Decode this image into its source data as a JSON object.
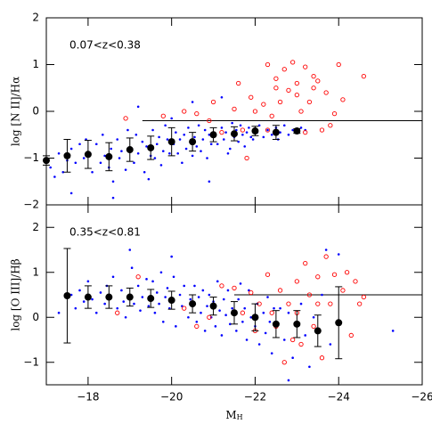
{
  "chart_data": [
    {
      "type": "scatter",
      "annotation": "0.07<z<0.38",
      "ylabel": "log [N II]/Hα",
      "xlim": [
        -17,
        -26
      ],
      "ylim": [
        -2,
        2
      ],
      "xticks": [
        -18,
        -20,
        -22,
        -24,
        -26
      ],
      "yticks": [
        2,
        1,
        0,
        -1,
        -2
      ],
      "hline": {
        "y": -0.2,
        "x": [
          -19.3,
          -26
        ]
      },
      "series": [
        {
          "marker": "dot",
          "color": "#0000ff",
          "x": [
            -17.1,
            -17.3,
            -17.4,
            -17.6,
            -17.7,
            -17.8,
            -17.9,
            -17.2,
            -17.5,
            -17.95,
            -18.05,
            -18.1,
            -18.2,
            -18.3,
            -18.35,
            -18.4,
            -18.5,
            -18.55,
            -18.6,
            -18.7,
            -18.75,
            -18.8,
            -18.9,
            -18.95,
            -19.05,
            -19.1,
            -19.15,
            -19.2,
            -19.3,
            -19.35,
            -19.4,
            -19.5,
            -19.55,
            -19.6,
            -19.65,
            -19.7,
            -19.75,
            -19.8,
            -19.85,
            -19.9,
            -19.95,
            -19.45,
            -20.05,
            -20.1,
            -20.15,
            -20.2,
            -20.25,
            -20.3,
            -20.35,
            -20.4,
            -20.45,
            -20.5,
            -20.55,
            -20.6,
            -20.65,
            -20.7,
            -20.75,
            -20.8,
            -20.85,
            -20.9,
            -20.95,
            -20.0,
            -21.05,
            -21.1,
            -21.2,
            -21.25,
            -21.3,
            -21.4,
            -21.45,
            -21.5,
            -21.55,
            -21.6,
            -21.65,
            -21.7,
            -21.75,
            -21.8,
            -21.85,
            -21.9,
            -21.95,
            -21.35,
            -22.05,
            -22.1,
            -22.2,
            -22.3,
            -22.4,
            -22.5,
            -22.55,
            -22.6,
            -22.7,
            -22.8,
            -22.9,
            -23.0,
            -23.1,
            -23.2,
            -19.2,
            -20.5,
            -21.2,
            -18.6,
            -17.6,
            -20.9
          ],
          "values": [
            -1.2,
            -0.9,
            -1.3,
            -0.8,
            -1.1,
            -0.7,
            -1.0,
            -1.4,
            -1.05,
            -0.6,
            -0.9,
            -1.3,
            -0.7,
            -1.1,
            -0.5,
            -0.95,
            -1.2,
            -0.8,
            -1.5,
            -0.6,
            -1.0,
            -0.85,
            -1.25,
            -0.4,
            -0.8,
            -1.1,
            -0.5,
            -0.9,
            -0.65,
            -1.3,
            -0.75,
            -0.95,
            -0.4,
            -1.0,
            -0.7,
            -0.55,
            -1.15,
            -0.85,
            -0.3,
            -0.6,
            -0.9,
            -1.45,
            -0.7,
            -0.45,
            -0.9,
            -0.6,
            -1.1,
            -0.5,
            -0.8,
            -0.35,
            -0.65,
            -0.95,
            -0.55,
            -0.75,
            -0.3,
            -0.85,
            -0.6,
            -0.4,
            -1.0,
            -0.5,
            -0.7,
            -0.15,
            -0.5,
            -0.7,
            -0.35,
            -0.6,
            -0.45,
            -0.8,
            -0.25,
            -0.55,
            -0.4,
            -0.65,
            -0.3,
            -0.5,
            -0.75,
            -0.45,
            -0.35,
            -0.55,
            -0.6,
            -0.9,
            -0.45,
            -0.3,
            -0.55,
            -0.4,
            -0.5,
            -0.35,
            -0.6,
            -0.45,
            -0.3,
            -0.5,
            -0.4,
            -0.45,
            -0.35,
            -0.4,
            0.1,
            0.2,
            0.3,
            -1.85,
            -1.75,
            -1.5
          ]
        },
        {
          "marker": "open-circle",
          "color": "#ff0000",
          "x": [
            -18.9,
            -19.8,
            -20.3,
            -20.6,
            -21.0,
            -21.2,
            -21.5,
            -21.7,
            -21.8,
            -21.9,
            -22.0,
            -22.2,
            -22.3,
            -22.4,
            -22.5,
            -22.5,
            -22.6,
            -22.7,
            -22.8,
            -22.9,
            -23.0,
            -23.0,
            -23.1,
            -23.2,
            -23.3,
            -23.4,
            -23.5,
            -23.6,
            -23.7,
            -23.8,
            -23.9,
            -24.0,
            -24.1,
            -23.4,
            -22.3,
            -24.6,
            -23.2,
            -21.6,
            -20.9
          ],
          "values": [
            -0.15,
            -0.1,
            0.0,
            -0.05,
            0.2,
            -0.45,
            0.05,
            -0.4,
            -1.0,
            0.3,
            0.0,
            0.15,
            -0.4,
            -0.1,
            0.7,
            0.5,
            0.2,
            0.9,
            0.45,
            1.05,
            0.35,
            0.6,
            0.0,
            0.95,
            0.2,
            0.5,
            0.65,
            -0.4,
            0.4,
            -0.3,
            -0.05,
            1.0,
            0.25,
            0.75,
            1.0,
            0.75,
            -0.45,
            0.6,
            -0.2
          ]
        },
        {
          "marker": "errorbar",
          "color": "#000000",
          "x": [
            -17,
            -17.5,
            -18,
            -18.5,
            -19,
            -19.5,
            -20,
            -20.5,
            -21,
            -21.5,
            -22,
            -22.5,
            -23
          ],
          "values": [
            -1.05,
            -0.95,
            -0.92,
            -0.97,
            -0.82,
            -0.78,
            -0.65,
            -0.65,
            -0.5,
            -0.48,
            -0.42,
            -0.45,
            -0.42
          ],
          "errors": [
            0.1,
            0.35,
            0.3,
            0.3,
            0.25,
            0.25,
            0.3,
            0.2,
            0.15,
            0.15,
            0.1,
            0.15,
            0.05
          ]
        }
      ]
    },
    {
      "type": "scatter",
      "annotation": "0.35<z<0.81",
      "ylabel": "log [O III]/Hβ",
      "xlabel": "M",
      "xlabel_sub": "H",
      "xlim": [
        -17,
        -26
      ],
      "ylim": [
        -1.5,
        2.5
      ],
      "xticks": [
        -18,
        -20,
        -22,
        -24,
        -26
      ],
      "yticks": [
        2,
        1,
        0,
        -1
      ],
      "hline": {
        "y": 0.5,
        "x": [
          -21.5,
          -26
        ]
      },
      "series": [
        {
          "marker": "dot",
          "color": "#0000ff",
          "x": [
            -17.6,
            -17.7,
            -17.8,
            -17.9,
            -18.0,
            -18.1,
            -18.2,
            -18.3,
            -18.4,
            -18.45,
            -18.55,
            -18.6,
            -18.7,
            -18.8,
            -18.85,
            -18.9,
            -19.0,
            -19.05,
            -19.1,
            -19.2,
            -19.25,
            -19.3,
            -19.4,
            -19.45,
            -19.5,
            -19.55,
            -19.6,
            -19.65,
            -19.7,
            -19.75,
            -19.8,
            -19.85,
            -19.9,
            -19.95,
            -20.0,
            -20.05,
            -20.1,
            -20.2,
            -20.25,
            -20.3,
            -20.4,
            -20.45,
            -20.5,
            -20.55,
            -20.6,
            -20.65,
            -20.7,
            -20.75,
            -20.8,
            -20.85,
            -20.9,
            -20.95,
            -21.0,
            -21.05,
            -21.1,
            -21.15,
            -21.2,
            -21.25,
            -21.3,
            -21.35,
            -21.4,
            -21.45,
            -21.5,
            -21.55,
            -21.6,
            -21.7,
            -21.75,
            -21.8,
            -21.85,
            -21.9,
            -22.0,
            -22.05,
            -22.1,
            -22.2,
            -22.25,
            -22.3,
            -22.35,
            -22.4,
            -22.45,
            -21.65,
            -22.5,
            -22.6,
            -22.7,
            -22.8,
            -22.9,
            -23.0,
            -23.1,
            -23.2,
            -23.3,
            -23.4,
            -23.5,
            -23.6,
            -23.8,
            -24.0,
            -17.3,
            -19.0,
            -23.7,
            -25.3,
            -22.8,
            -20.0
          ],
          "values": [
            0.5,
            0.2,
            0.6,
            0.35,
            0.8,
            0.4,
            0.1,
            0.55,
            0.3,
            0.7,
            0.45,
            0.9,
            0.2,
            0.6,
            0.35,
            0.0,
            0.5,
            1.1,
            0.3,
            0.7,
            0.15,
            0.45,
            0.85,
            0.25,
            0.4,
            0.8,
            0.1,
            0.55,
            0.3,
            1.0,
            -0.1,
            0.45,
            0.65,
            0.2,
            0.35,
            0.9,
            -0.2,
            0.5,
            0.25,
            0.7,
            0.0,
            0.4,
            0.3,
            0.7,
            -0.1,
            0.45,
            0.1,
            0.6,
            -0.3,
            0.25,
            0.5,
            0.0,
            0.35,
            -0.2,
            0.8,
            0.15,
            -0.4,
            0.4,
            0.05,
            0.6,
            -0.15,
            0.2,
            0.1,
            -0.3,
            0.4,
            -0.1,
            0.2,
            -0.5,
            0.6,
            0.0,
            -0.2,
            0.3,
            -0.6,
            0.1,
            -0.35,
            0.45,
            -0.1,
            -0.8,
            0.2,
            0.75,
            -0.2,
            0.2,
            -0.5,
            0.1,
            -0.9,
            -0.1,
            0.3,
            -0.4,
            -1.1,
            0.0,
            -0.3,
            0.5,
            -0.6,
            1.4,
            0.1,
            1.5,
            1.5,
            -0.3,
            -1.4,
            1.35
          ]
        },
        {
          "marker": "open-circle",
          "color": "#ff0000",
          "x": [
            -18.7,
            -19.2,
            -20.3,
            -20.6,
            -20.9,
            -21.2,
            -21.5,
            -21.7,
            -21.9,
            -22.0,
            -22.1,
            -22.3,
            -22.4,
            -22.5,
            -22.6,
            -22.7,
            -22.8,
            -22.9,
            -23.0,
            -23.0,
            -23.1,
            -23.2,
            -23.3,
            -23.4,
            -23.5,
            -23.6,
            -23.7,
            -23.8,
            -23.9,
            -24.0,
            -24.1,
            -24.2,
            -24.4,
            -24.5,
            -24.6,
            -23.5,
            -24.3
          ],
          "values": [
            0.1,
            0.9,
            0.2,
            -0.2,
            0.0,
            0.7,
            0.65,
            0.1,
            0.55,
            -0.3,
            0.3,
            0.95,
            0.1,
            -0.2,
            0.6,
            -1.0,
            0.3,
            -0.5,
            0.8,
            0.1,
            -0.6,
            1.2,
            0.5,
            -0.2,
            0.9,
            -0.9,
            1.35,
            0.3,
            0.95,
            -0.1,
            0.6,
            1.0,
            0.8,
            0.3,
            0.45,
            0.3,
            -0.4
          ]
        },
        {
          "marker": "errorbar",
          "color": "#000000",
          "x": [
            -17.5,
            -18,
            -18.5,
            -19,
            -19.5,
            -20,
            -20.5,
            -21,
            -21.5,
            -22,
            -22.5,
            -23,
            -23.5,
            -24
          ],
          "values": [
            0.48,
            0.45,
            0.45,
            0.45,
            0.42,
            0.38,
            0.3,
            0.25,
            0.1,
            0.0,
            -0.15,
            -0.15,
            -0.3,
            -0.12
          ],
          "errors": [
            1.05,
            0.25,
            0.25,
            0.2,
            0.2,
            0.2,
            0.2,
            0.2,
            0.25,
            0.3,
            0.3,
            0.3,
            0.35,
            0.8
          ]
        }
      ]
    }
  ]
}
